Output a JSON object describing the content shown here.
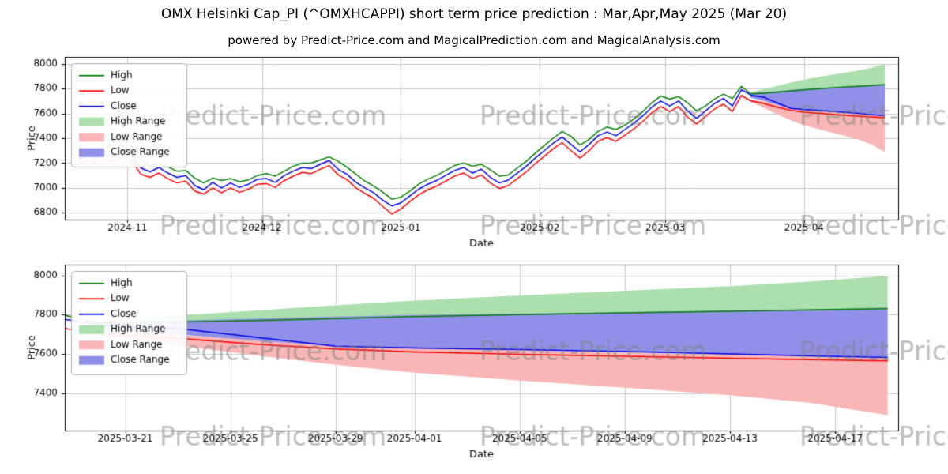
{
  "page": {
    "title": "OMX Helsinki Cap_PI (^OMXHCAPPI) short term price prediction : Mar,Apr,May 2025 (Mar 20)",
    "subtitle": "powered by Predict-Price.com and MagicalPrediction.com and MagicalAnalysis.com",
    "watermark": "Predict-Price.com"
  },
  "colors": {
    "high": "#008000",
    "low": "#ff0000",
    "close": "#0000ee",
    "high_range": "#abdfae",
    "low_range": "#f9b6b6",
    "close_range": "#9090e8",
    "grid": "#c8c8c8",
    "axis": "#000000",
    "watermark": "#808080"
  },
  "legend": [
    {
      "label": "High",
      "type": "line",
      "color": "high"
    },
    {
      "label": "Low",
      "type": "line",
      "color": "low"
    },
    {
      "label": "Close",
      "type": "line",
      "color": "close"
    },
    {
      "label": "High Range",
      "type": "band",
      "color": "high_range"
    },
    {
      "label": "Low Range",
      "type": "band",
      "color": "low_range"
    },
    {
      "label": "Close Range",
      "type": "band",
      "color": "close_range"
    }
  ],
  "history": {
    "note": "daily OHLC-style history, day 0 = 2024-10-21, day 150 = 2025-03-20",
    "days": [
      0,
      2,
      4,
      6,
      8,
      10,
      12,
      14,
      16,
      18,
      20,
      22,
      24,
      26,
      28,
      30,
      32,
      34,
      36,
      38,
      40,
      42,
      44,
      46,
      48,
      50,
      52,
      54,
      56,
      58,
      60,
      62,
      64,
      66,
      68,
      70,
      72,
      74,
      76,
      78,
      80,
      82,
      84,
      86,
      88,
      90,
      92,
      94,
      96,
      98,
      100,
      102,
      104,
      106,
      108,
      110,
      112,
      114,
      116,
      118,
      120,
      122,
      124,
      126,
      128,
      130,
      132,
      134,
      136,
      138,
      140,
      142,
      144,
      146,
      148,
      150
    ],
    "high": [
      7265,
      7290,
      7280,
      7295,
      7290,
      7305,
      7300,
      7230,
      7175,
      7200,
      7170,
      7135,
      7140,
      7080,
      7040,
      7080,
      7060,
      7075,
      7050,
      7065,
      7100,
      7115,
      7095,
      7135,
      7175,
      7200,
      7200,
      7225,
      7250,
      7215,
      7165,
      7110,
      7055,
      7015,
      6965,
      6910,
      6925,
      6975,
      7030,
      7070,
      7100,
      7140,
      7180,
      7200,
      7175,
      7190,
      7145,
      7095,
      7105,
      7160,
      7215,
      7280,
      7340,
      7400,
      7455,
      7415,
      7345,
      7390,
      7455,
      7490,
      7470,
      7505,
      7555,
      7615,
      7685,
      7740,
      7715,
      7735,
      7685,
      7620,
      7660,
      7715,
      7755,
      7720,
      7818,
      7758
    ],
    "low": [
      7195,
      7220,
      7205,
      7230,
      7215,
      7245,
      7215,
      7110,
      7085,
      7120,
      7075,
      7040,
      7055,
      6975,
      6950,
      7000,
      6960,
      7000,
      6965,
      6990,
      7030,
      7035,
      7005,
      7060,
      7095,
      7125,
      7115,
      7150,
      7180,
      7105,
      7065,
      7000,
      6955,
      6915,
      6850,
      6790,
      6830,
      6890,
      6945,
      6985,
      7015,
      7055,
      7095,
      7120,
      7075,
      7105,
      7040,
      6995,
      7020,
      7075,
      7130,
      7195,
      7255,
      7315,
      7365,
      7300,
      7240,
      7300,
      7375,
      7405,
      7375,
      7425,
      7475,
      7535,
      7605,
      7655,
      7615,
      7655,
      7570,
      7515,
      7575,
      7635,
      7675,
      7615,
      7745,
      7702
    ],
    "close": [
      7230,
      7255,
      7240,
      7265,
      7250,
      7285,
      7260,
      7160,
      7130,
      7165,
      7120,
      7085,
      7100,
      7020,
      6985,
      7045,
      7000,
      7040,
      7005,
      7030,
      7070,
      7075,
      7045,
      7100,
      7135,
      7165,
      7155,
      7190,
      7220,
      7150,
      7110,
      7045,
      7000,
      6960,
      6900,
      6855,
      6880,
      6935,
      6990,
      7030,
      7060,
      7100,
      7140,
      7165,
      7120,
      7150,
      7085,
      7040,
      7065,
      7120,
      7175,
      7240,
      7300,
      7360,
      7410,
      7350,
      7290,
      7350,
      7420,
      7450,
      7420,
      7470,
      7520,
      7580,
      7650,
      7700,
      7660,
      7700,
      7620,
      7560,
      7620,
      7680,
      7720,
      7660,
      7790,
      7750
    ]
  },
  "forecast": {
    "note": "prediction from 2025-03-20 (day 150) to ~2025-04-19 (day 180)",
    "days": [
      150,
      153,
      156,
      159,
      162,
      166,
      170,
      174,
      177,
      180
    ],
    "high_line": [
      7758,
      7762,
      7770,
      7780,
      7790,
      7800,
      7810,
      7818,
      7825,
      7832
    ],
    "low_line": [
      7702,
      7680,
      7650,
      7625,
      7610,
      7598,
      7588,
      7578,
      7571,
      7565
    ],
    "close_line": [
      7745,
      7730,
      7685,
      7640,
      7630,
      7622,
      7612,
      7600,
      7590,
      7582
    ],
    "high_upper": [
      7770,
      7795,
      7822,
      7848,
      7872,
      7898,
      7922,
      7945,
      7968,
      7998
    ],
    "high_lower": [
      7748,
      7755,
      7764,
      7774,
      7784,
      7794,
      7804,
      7813,
      7821,
      7830
    ],
    "close_upper": [
      7760,
      7770,
      7780,
      7790,
      7798,
      7806,
      7814,
      7821,
      7827,
      7833
    ],
    "close_lower": [
      7728,
      7700,
      7668,
      7642,
      7630,
      7620,
      7610,
      7598,
      7589,
      7580
    ],
    "low_upper": [
      7712,
      7697,
      7672,
      7648,
      7632,
      7618,
      7606,
      7596,
      7588,
      7580
    ],
    "low_lower": [
      7692,
      7645,
      7592,
      7545,
      7505,
      7465,
      7428,
      7390,
      7352,
      7288
    ]
  },
  "chart_data": [
    {
      "type": "line",
      "title": "",
      "xlabel": "Date",
      "ylabel": "Price",
      "xlim": [
        -3,
        183
      ],
      "ylim": [
        6745,
        8055
      ],
      "yticks": [
        6800,
        7000,
        7200,
        7400,
        7600,
        7800,
        8000
      ],
      "xticks": [
        {
          "x": 11,
          "label": "2024-11"
        },
        {
          "x": 41,
          "label": "2024-12"
        },
        {
          "x": 72,
          "label": "2025-01"
        },
        {
          "x": 103,
          "label": "2025-02"
        },
        {
          "x": 131,
          "label": "2025-03"
        },
        {
          "x": 162,
          "label": "2025-04"
        }
      ],
      "grid": true,
      "legend_position": "upper left"
    },
    {
      "type": "line",
      "title": "",
      "xlabel": "Date",
      "ylabel": "Price",
      "xlim": [
        148.7,
        180.4
      ],
      "ylim": [
        7210,
        8055
      ],
      "yticks": [
        7400,
        7600,
        7800,
        8000
      ],
      "xticks": [
        {
          "x": 151,
          "label": "2025-03-21"
        },
        {
          "x": 155,
          "label": "2025-03-25"
        },
        {
          "x": 159,
          "label": "2025-03-29"
        },
        {
          "x": 162,
          "label": "2025-04-01"
        },
        {
          "x": 166,
          "label": "2025-04-05"
        },
        {
          "x": 170,
          "label": "2025-04-09"
        },
        {
          "x": 174,
          "label": "2025-04-13"
        },
        {
          "x": 178,
          "label": "2025-04-17"
        }
      ],
      "grid": true,
      "legend_position": "upper left"
    }
  ]
}
